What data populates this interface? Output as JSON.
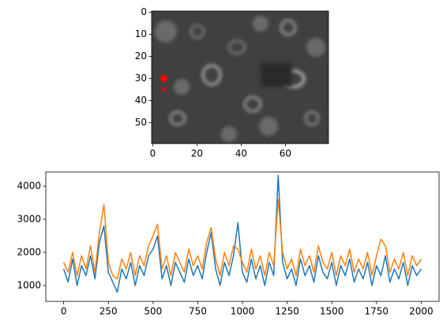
{
  "chart_data": [
    {
      "type": "image",
      "xlim": [
        -0.5,
        79.5
      ],
      "ylim": [
        59.5,
        -0.5
      ],
      "xticks": [
        0,
        20,
        40,
        60
      ],
      "yticks": [
        0,
        10,
        20,
        30,
        40,
        50
      ],
      "markers": [
        {
          "x": 5,
          "y": 30,
          "marker": "o",
          "color": "#ff0000"
        },
        {
          "x": 5,
          "y": 35,
          "marker": "x",
          "color": "#ff0000"
        }
      ]
    },
    {
      "type": "line",
      "x": [
        0,
        25,
        50,
        75,
        100,
        125,
        150,
        175,
        200,
        225,
        250,
        275,
        300,
        325,
        350,
        375,
        400,
        425,
        450,
        475,
        500,
        525,
        550,
        575,
        600,
        625,
        650,
        675,
        700,
        725,
        750,
        775,
        800,
        825,
        850,
        875,
        900,
        925,
        950,
        975,
        1000,
        1025,
        1050,
        1075,
        1100,
        1125,
        1150,
        1175,
        1200,
        1225,
        1250,
        1275,
        1300,
        1325,
        1350,
        1375,
        1400,
        1425,
        1450,
        1475,
        1500,
        1525,
        1550,
        1575,
        1600,
        1625,
        1650,
        1675,
        1700,
        1725,
        1750,
        1775,
        1800,
        1825,
        1850,
        1875,
        1900,
        1925,
        1950,
        1975,
        2000
      ],
      "xlim": [
        -100,
        2100
      ],
      "ylim": [
        520,
        4430
      ],
      "xticks": [
        0,
        250,
        500,
        750,
        1000,
        1250,
        1500,
        1750,
        2000
      ],
      "yticks": [
        1000,
        2000,
        3000,
        4000
      ],
      "series": [
        {
          "color": "#1f77b4",
          "values": [
            1500,
            1100,
            1800,
            1000,
            1600,
            1300,
            1900,
            1200,
            2300,
            2800,
            1400,
            1100,
            800,
            1500,
            1200,
            1700,
            1000,
            1600,
            1300,
            1900,
            2100,
            2500,
            1200,
            1600,
            1000,
            1700,
            1400,
            1100,
            1800,
            1300,
            1600,
            1200,
            2000,
            2600,
            1500,
            1000,
            1700,
            1300,
            1900,
            2900,
            1400,
            1100,
            1800,
            1200,
            1600,
            1000,
            1700,
            1300,
            4330,
            1700,
            1200,
            1500,
            1000,
            1800,
            1300,
            1600,
            1100,
            1900,
            1400,
            1200,
            1700,
            1000,
            1600,
            1300,
            1800,
            1100,
            1500,
            1200,
            1700,
            1000,
            1600,
            1300,
            1900,
            1100,
            1500,
            1200,
            1700,
            1000,
            1600,
            1300,
            1500
          ]
        },
        {
          "color": "#ff7f0e",
          "values": [
            1700,
            1400,
            2000,
            1300,
            1900,
            1500,
            2200,
            1400,
            2600,
            3450,
            1700,
            1300,
            1200,
            1800,
            1500,
            2000,
            1300,
            1900,
            1600,
            2200,
            2500,
            2850,
            1500,
            1900,
            1300,
            2000,
            1700,
            1400,
            2100,
            1600,
            1900,
            1500,
            2300,
            2750,
            1800,
            1300,
            2000,
            1600,
            2200,
            2100,
            1700,
            1400,
            2100,
            1500,
            1900,
            1300,
            2000,
            1600,
            3600,
            2000,
            1500,
            1800,
            1300,
            2100,
            1600,
            1900,
            1400,
            2200,
            1700,
            1500,
            2000,
            1300,
            1900,
            1600,
            2100,
            1400,
            1800,
            1500,
            2000,
            1300,
            1900,
            2400,
            2200,
            1400,
            1800,
            1500,
            2000,
            1300,
            1900,
            1600,
            1800
          ]
        }
      ]
    }
  ]
}
